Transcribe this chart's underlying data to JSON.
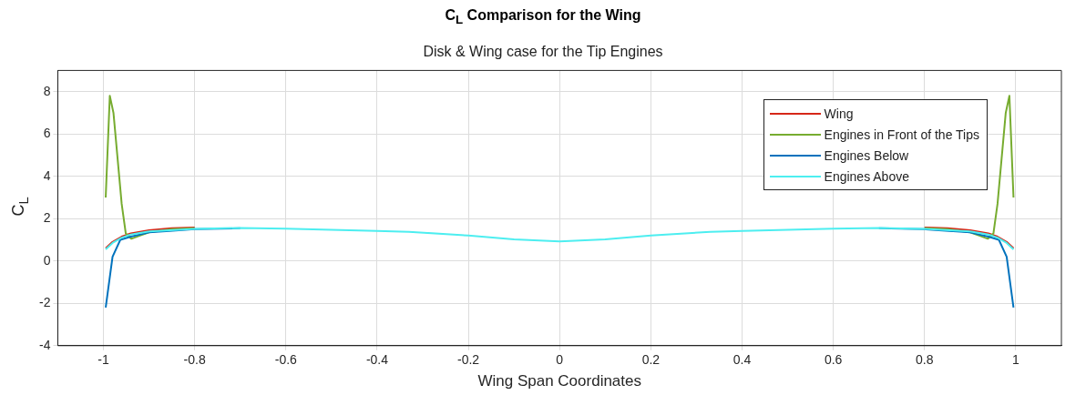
{
  "chart_data": {
    "type": "line",
    "title": "C$_{L}$ Comparison for the Wing",
    "subtitle": "Disk & Wing case for the Tip Engines",
    "xlabel": "Wing Span Coordinates",
    "ylabel": "C$_{L}$",
    "xlim": [
      -1.1,
      1.1
    ],
    "xticks": [
      -1,
      -0.8,
      -0.6,
      -0.4,
      -0.2,
      0,
      0.2,
      0.4,
      0.6,
      0.8,
      1
    ],
    "ylim": [
      -4,
      9
    ],
    "yticks": [
      -4,
      -2,
      0,
      2,
      4,
      6,
      8
    ],
    "grid": true,
    "legend": "top right",
    "marker": "none",
    "line_style": "solid",
    "series": [
      {
        "name": "Wing",
        "color": "#d62718",
        "x": [
          -0.995,
          -0.98,
          -0.96,
          -0.94,
          -0.9,
          -0.85,
          -0.8,
          -0.7,
          -0.6,
          -0.5,
          -0.4,
          -0.33,
          -0.2,
          -0.1,
          0,
          0.1,
          0.2,
          0.33,
          0.4,
          0.5,
          0.6,
          0.7,
          0.8,
          0.85,
          0.9,
          0.94,
          0.96,
          0.98,
          0.995
        ],
        "values": [
          0.6,
          0.9,
          1.15,
          1.3,
          1.45,
          1.55,
          1.58,
          null,
          null,
          null,
          null,
          null,
          null,
          null,
          null,
          null,
          null,
          null,
          null,
          null,
          null,
          null,
          1.58,
          1.55,
          1.45,
          1.3,
          1.15,
          0.9,
          0.6
        ]
      },
      {
        "name": "Engines in Front of the Tips",
        "color": "#77ac30",
        "x": [
          -0.995,
          -0.986,
          -0.978,
          -0.96,
          -0.951,
          -0.939,
          -0.92,
          -0.9,
          -0.85,
          -0.8,
          -0.7,
          -0.6,
          -0.5,
          -0.4,
          -0.33,
          -0.2,
          -0.1,
          0,
          0.1,
          0.2,
          0.33,
          0.4,
          0.5,
          0.6,
          0.7,
          0.8,
          0.85,
          0.9,
          0.92,
          0.939,
          0.951,
          0.96,
          0.978,
          0.986,
          0.995
        ],
        "values": [
          3.0,
          7.8,
          7.0,
          2.7,
          1.3,
          1.05,
          1.2,
          1.35,
          1.5,
          1.55,
          null,
          null,
          null,
          null,
          null,
          null,
          null,
          null,
          null,
          null,
          null,
          null,
          null,
          null,
          null,
          1.55,
          1.5,
          1.35,
          1.2,
          1.05,
          1.3,
          2.7,
          7.0,
          7.8,
          3.0
        ]
      },
      {
        "name": "Engines Below",
        "color": "#0072bd",
        "x": [
          -0.995,
          -0.98,
          -0.963,
          -0.94,
          -0.9,
          -0.8,
          -0.7,
          -0.6,
          -0.5,
          -0.4,
          -0.33,
          -0.2,
          -0.1,
          0,
          0.1,
          0.2,
          0.33,
          0.4,
          0.5,
          0.6,
          0.7,
          0.8,
          0.9,
          0.94,
          0.963,
          0.98,
          0.995
        ],
        "values": [
          -2.2,
          0.2,
          1.0,
          1.15,
          1.35,
          1.5,
          1.55,
          null,
          null,
          null,
          null,
          null,
          null,
          null,
          null,
          null,
          null,
          null,
          null,
          null,
          1.55,
          1.5,
          1.35,
          1.15,
          1.0,
          0.2,
          -2.2
        ]
      },
      {
        "name": "Engines Above",
        "color": "#4deef0",
        "x": [
          -0.995,
          -0.98,
          -0.96,
          -0.94,
          -0.9,
          -0.8,
          -0.7,
          -0.6,
          -0.5,
          -0.4,
          -0.33,
          -0.2,
          -0.1,
          0,
          0.1,
          0.2,
          0.33,
          0.4,
          0.5,
          0.6,
          0.7,
          0.8,
          0.9,
          0.94,
          0.96,
          0.98,
          0.995
        ],
        "values": [
          0.55,
          0.85,
          1.1,
          1.25,
          1.4,
          1.52,
          1.56,
          1.53,
          1.47,
          1.42,
          1.38,
          1.2,
          1.02,
          0.92,
          1.02,
          1.2,
          1.38,
          1.42,
          1.47,
          1.53,
          1.56,
          1.52,
          1.4,
          1.25,
          1.1,
          0.85,
          0.55
        ]
      }
    ]
  }
}
